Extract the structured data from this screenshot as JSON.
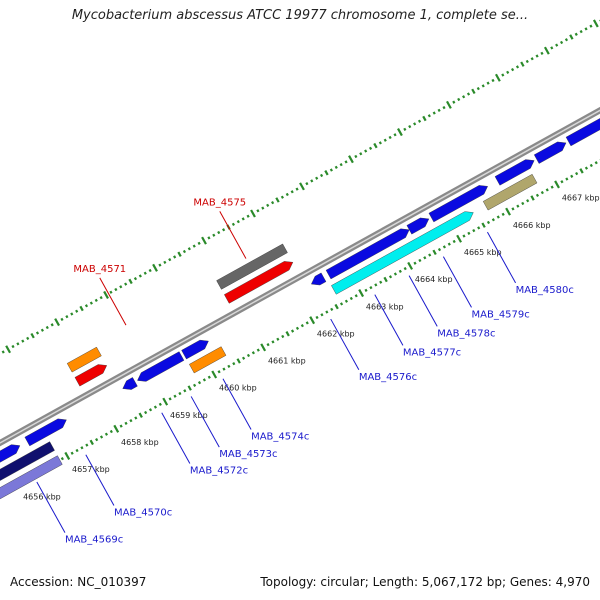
{
  "title": "Mycobacterium abscessus ATCC 19977 chromosome 1, complete se...",
  "footer": {
    "accession": "Accession: NC_010397",
    "summary": "Topology: circular; Length: 5,067,172 bp; Genes: 4,970"
  },
  "axis_ticks": [
    {
      "label": "4656 kbp",
      "kbp": 4656
    },
    {
      "label": "4657 kbp",
      "kbp": 4657
    },
    {
      "label": "4658 kbp",
      "kbp": 4658
    },
    {
      "label": "4659 kbp",
      "kbp": 4659
    },
    {
      "label": "4660 kbp",
      "kbp": 4660
    },
    {
      "label": "4661 kbp",
      "kbp": 4661
    },
    {
      "label": "4662 kbp",
      "kbp": 4662
    },
    {
      "label": "4663 kbp",
      "kbp": 4663
    },
    {
      "label": "4664 kbp",
      "kbp": 4664
    },
    {
      "label": "4665 kbp",
      "kbp": 4665
    },
    {
      "label": "4666 kbp",
      "kbp": 4666
    },
    {
      "label": "4667 kbp",
      "kbp": 4667
    }
  ],
  "gene_labels": [
    {
      "name": "MAB_4569c",
      "color": "#1a1acc",
      "side": "below",
      "kbp": 4656.3
    },
    {
      "name": "MAB_4570c",
      "color": "#1a1acc",
      "side": "below",
      "kbp": 4657.3
    },
    {
      "name": "MAB_4571",
      "color": "#cc0000",
      "side": "above",
      "kbp": 4659.05
    },
    {
      "name": "MAB_4572c",
      "color": "#1a1acc",
      "side": "below",
      "kbp": 4658.85
    },
    {
      "name": "MAB_4573c",
      "color": "#1a1acc",
      "side": "below",
      "kbp": 4659.45
    },
    {
      "name": "MAB_4574c",
      "color": "#1a1acc",
      "side": "below",
      "kbp": 4660.1
    },
    {
      "name": "MAB_4575",
      "color": "#cc0000",
      "side": "above",
      "kbp": 4661.5
    },
    {
      "name": "MAB_4576c",
      "color": "#1a1acc",
      "side": "below",
      "kbp": 4662.3
    },
    {
      "name": "MAB_4577c",
      "color": "#1a1acc",
      "side": "below",
      "kbp": 4663.2
    },
    {
      "name": "MAB_4578c",
      "color": "#1a1acc",
      "side": "below",
      "kbp": 4663.9
    },
    {
      "name": "MAB_4579c",
      "color": "#1a1acc",
      "side": "below",
      "kbp": 4664.6
    },
    {
      "name": "MAB_4580c",
      "color": "#1a1acc",
      "side": "below",
      "kbp": 4665.5
    }
  ],
  "features": [
    {
      "track": 1,
      "start": 4653.5,
      "end": 4656.35,
      "color": "#0a0ae0",
      "dir": 1
    },
    {
      "track": 2,
      "start": 4654.0,
      "end": 4656.85,
      "color": "#10106e",
      "dir": 0
    },
    {
      "track": 3,
      "start": 4654.0,
      "end": 4656.85,
      "color": "#7b78d8",
      "dir": 0
    },
    {
      "track": 1,
      "start": 4656.5,
      "end": 4657.3,
      "color": "#0a0ae0",
      "dir": 1
    },
    {
      "track": 1,
      "start": 4658.45,
      "end": 4658.7,
      "color": "#0a0ae0",
      "dir": -1
    },
    {
      "track": 1,
      "start": 4658.75,
      "end": 4659.65,
      "color": "#0a0ae0",
      "dir": -1
    },
    {
      "track": 1,
      "start": 4659.7,
      "end": 4660.2,
      "color": "#0a0ae0",
      "dir": 1
    },
    {
      "track": 2,
      "start": 4659.7,
      "end": 4660.35,
      "color": "#ff8c00",
      "dir": 0
    },
    {
      "track": -2,
      "start": 4657.8,
      "end": 4658.4,
      "color": "#ff8c00",
      "dir": 0
    },
    {
      "track": -1,
      "start": 4657.8,
      "end": 4658.4,
      "color": "#ee0000",
      "dir": 1
    },
    {
      "track": -2,
      "start": 4660.85,
      "end": 4662.2,
      "color": "#666666",
      "dir": 0
    },
    {
      "track": -1,
      "start": 4660.85,
      "end": 4662.2,
      "color": "#ee0000",
      "dir": 1
    },
    {
      "track": 1,
      "start": 4662.3,
      "end": 4662.55,
      "color": "#0a0ae0",
      "dir": -1
    },
    {
      "track": 1,
      "start": 4662.65,
      "end": 4664.3,
      "color": "#0a0ae0",
      "dir": 1
    },
    {
      "track": 1,
      "start": 4664.3,
      "end": 4664.7,
      "color": "#0a0ae0",
      "dir": 1
    },
    {
      "track": 1,
      "start": 4664.75,
      "end": 4665.9,
      "color": "#0a0ae0",
      "dir": 1
    },
    {
      "track": 2,
      "start": 4662.6,
      "end": 4665.45,
      "color": "#00eeee",
      "dir": 1
    },
    {
      "track": 1,
      "start": 4666.1,
      "end": 4666.85,
      "color": "#0a0ae0",
      "dir": 1
    },
    {
      "track": 2,
      "start": 4665.7,
      "end": 4666.7,
      "color": "#b0a66c",
      "dir": 0
    },
    {
      "track": 1,
      "start": 4666.9,
      "end": 4667.5,
      "color": "#0a0ae0",
      "dir": 1
    },
    {
      "track": 1,
      "start": 4667.55,
      "end": 4669.5,
      "color": "#0a0ae0",
      "dir": 1
    }
  ]
}
